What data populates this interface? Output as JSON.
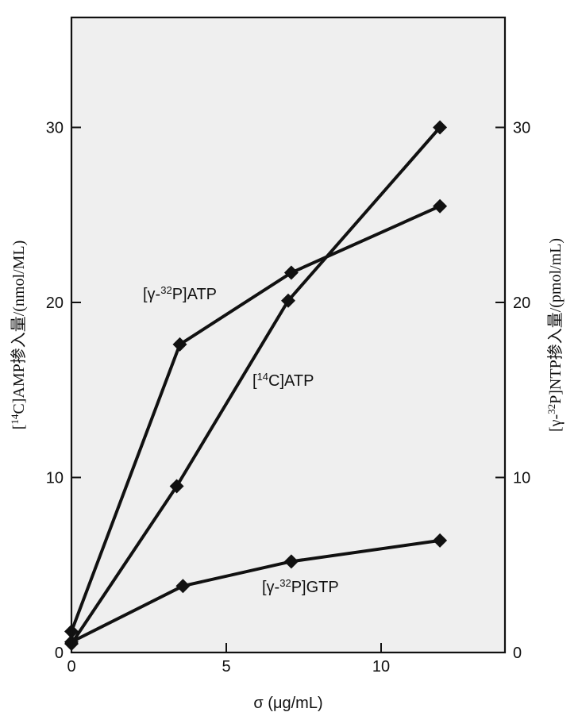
{
  "chart_data": {
    "type": "line",
    "xlabel": "σ (μg/mL)",
    "ylabel_left": {
      "pre": "[",
      "sup": "14",
      "post": "C]AMP掺入量/(nmol/ML)"
    },
    "ylabel_right": {
      "pre": "[γ-",
      "sup": "32",
      "post": "P]NTP掺入量/(pmol/mL)"
    },
    "xlim": [
      0,
      14
    ],
    "ylim_left": [
      0,
      35
    ],
    "ylim_right": [
      0,
      35
    ],
    "x_ticks": [
      0,
      5,
      10
    ],
    "y_ticks_left": [
      0,
      10,
      20,
      30
    ],
    "y_ticks_right": [
      0,
      10,
      20,
      30
    ],
    "grid": false,
    "series": [
      {
        "name": "[γ-32P]ATP",
        "label_parts": {
          "pre": "[γ-",
          "sup": "32",
          "post": "P]ATP"
        },
        "x": [
          0,
          3.5,
          7.1,
          11.9
        ],
        "y": [
          1.2,
          17.6,
          21.7,
          25.5
        ]
      },
      {
        "name": "[14C]ATP",
        "label_parts": {
          "pre": "[",
          "sup": "14",
          "post": "C]ATP"
        },
        "x": [
          0,
          3.4,
          7.0,
          11.9
        ],
        "y": [
          0.5,
          9.5,
          20.1,
          30.0
        ]
      },
      {
        "name": "[γ-32P]GTP",
        "label_parts": {
          "pre": "[γ-",
          "sup": "32",
          "post": "P]GTP"
        },
        "x": [
          0,
          3.6,
          7.1,
          11.9
        ],
        "y": [
          0.6,
          3.8,
          5.2,
          6.4
        ]
      }
    ]
  }
}
